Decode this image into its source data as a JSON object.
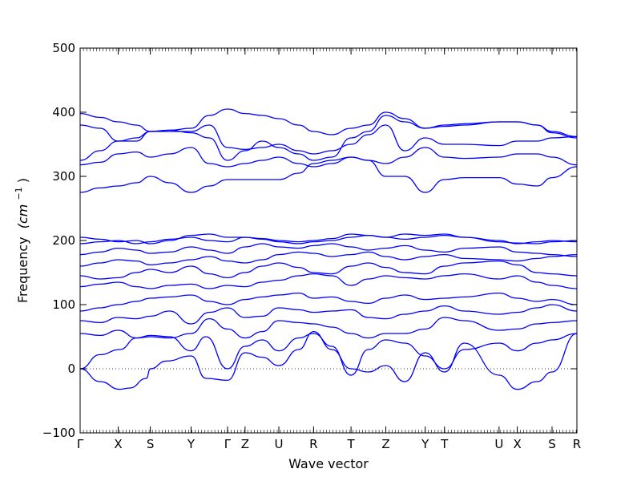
{
  "chart_data": {
    "type": "line",
    "xlabel": "Wave vector",
    "ylabel_text": "Frequency",
    "ylabel_unit": "(cm",
    "ylabel_exp": "−1",
    "ylabel_close": ")",
    "ylim": [
      -100,
      500
    ],
    "yticks": [
      -100,
      0,
      100,
      200,
      300,
      400,
      500
    ],
    "xlim": [
      0,
      14
    ],
    "xticks": [
      {
        "label": "Γ",
        "x": 0.0
      },
      {
        "label": "X",
        "x": 1.15
      },
      {
        "label": "S",
        "x": 2.12
      },
      {
        "label": "Y",
        "x": 3.35
      },
      {
        "label": "Γ",
        "x": 4.45
      },
      {
        "label": "Z",
        "x": 4.98
      },
      {
        "label": "U",
        "x": 6.0
      },
      {
        "label": "R",
        "x": 7.05
      },
      {
        "label": "T",
        "x": 8.18
      },
      {
        "label": "Z",
        "x": 9.23
      },
      {
        "label": "Y",
        "x": 10.42
      },
      {
        "label": "T",
        "x": 11.0
      },
      {
        "label": "U",
        "x": 12.65
      },
      {
        "label": "X",
        "x": 13.2
      },
      {
        "label": "S",
        "x": 14.25
      },
      {
        "label": "R",
        "x": 15.0
      }
    ],
    "zero_line": true,
    "series_color": "#0000ff",
    "series": [
      {
        "x": [
          0,
          0.6,
          1.2,
          1.5,
          2.0,
          2.12,
          2.6,
          3.35,
          3.8,
          4.45,
          4.98,
          5.5,
          6.0,
          6.6,
          7.05,
          7.6,
          8.18,
          8.7,
          9.23,
          9.8,
          10.42,
          11.0,
          11.6,
          12.65,
          13.2,
          13.8,
          14.25,
          15.0
        ],
        "y": [
          0,
          -20,
          -32,
          -30,
          -15,
          0,
          12,
          20,
          -15,
          -18,
          25,
          18,
          5,
          30,
          58,
          30,
          0,
          -5,
          5,
          -20,
          25,
          -5,
          40,
          -10,
          -32,
          -20,
          -5,
          55
        ]
      },
      {
        "x": [
          0,
          0.6,
          1.2,
          1.7,
          2.12,
          2.7,
          3.35,
          3.8,
          4.45,
          4.98,
          5.5,
          6.0,
          6.6,
          7.05,
          7.6,
          8.18,
          8.7,
          9.23,
          9.8,
          10.42,
          11.0,
          11.6,
          12.65,
          13.2,
          13.8,
          14.25,
          15.0
        ],
        "y": [
          0,
          22,
          30,
          48,
          52,
          50,
          28,
          50,
          0,
          35,
          45,
          28,
          48,
          55,
          35,
          -10,
          30,
          45,
          40,
          20,
          0,
          30,
          40,
          28,
          40,
          45,
          55
        ]
      },
      {
        "x": [
          0,
          0.6,
          1.15,
          1.7,
          2.12,
          2.7,
          3.35,
          3.9,
          4.45,
          4.98,
          5.5,
          6.0,
          6.6,
          7.05,
          7.6,
          8.18,
          8.7,
          9.23,
          9.8,
          10.42,
          11.0,
          11.6,
          12.65,
          13.2,
          13.8,
          14.25,
          15.0
        ],
        "y": [
          55,
          52,
          60,
          48,
          50,
          48,
          55,
          78,
          62,
          48,
          58,
          75,
          72,
          70,
          65,
          55,
          48,
          55,
          55,
          62,
          80,
          75,
          60,
          62,
          70,
          72,
          75
        ]
      },
      {
        "x": [
          0,
          0.6,
          1.15,
          1.7,
          2.12,
          2.7,
          3.35,
          3.9,
          4.45,
          4.98,
          5.5,
          6.0,
          6.6,
          7.05,
          7.6,
          8.18,
          8.7,
          9.23,
          9.8,
          10.42,
          11.0,
          11.6,
          12.65,
          13.2,
          13.8,
          14.25,
          15.0
        ],
        "y": [
          75,
          72,
          80,
          78,
          82,
          90,
          70,
          88,
          95,
          80,
          82,
          95,
          92,
          88,
          90,
          92,
          80,
          78,
          85,
          90,
          98,
          90,
          85,
          88,
          95,
          100,
          90
        ]
      },
      {
        "x": [
          0,
          0.6,
          1.15,
          1.7,
          2.12,
          2.7,
          3.35,
          3.9,
          4.45,
          4.98,
          5.5,
          6.0,
          6.6,
          7.05,
          7.6,
          8.18,
          8.7,
          9.23,
          9.8,
          10.42,
          11.0,
          11.6,
          12.65,
          13.2,
          13.8,
          14.25,
          15.0
        ],
        "y": [
          90,
          95,
          100,
          105,
          110,
          112,
          115,
          105,
          100,
          108,
          112,
          115,
          118,
          110,
          112,
          105,
          102,
          110,
          115,
          108,
          110,
          112,
          118,
          110,
          105,
          108,
          100
        ]
      },
      {
        "x": [
          0,
          0.6,
          1.15,
          1.7,
          2.12,
          2.7,
          3.35,
          3.9,
          4.45,
          4.98,
          5.5,
          6.0,
          6.6,
          7.05,
          7.6,
          8.18,
          8.7,
          9.23,
          9.8,
          10.42,
          11.0,
          11.6,
          12.65,
          13.2,
          13.8,
          14.25,
          15.0
        ],
        "y": [
          128,
          132,
          135,
          128,
          125,
          130,
          132,
          125,
          130,
          128,
          135,
          138,
          145,
          148,
          145,
          130,
          140,
          145,
          142,
          140,
          145,
          148,
          140,
          145,
          135,
          130,
          125
        ]
      },
      {
        "x": [
          0,
          0.6,
          1.15,
          1.7,
          2.12,
          2.7,
          3.35,
          3.9,
          4.45,
          4.98,
          5.5,
          6.0,
          6.6,
          7.05,
          7.6,
          8.18,
          8.7,
          9.23,
          9.8,
          10.42,
          11.0,
          11.6,
          12.65,
          13.2,
          13.8,
          14.25,
          15.0
        ],
        "y": [
          145,
          140,
          142,
          150,
          155,
          150,
          160,
          148,
          142,
          150,
          160,
          165,
          158,
          150,
          148,
          160,
          165,
          158,
          150,
          148,
          160,
          165,
          168,
          162,
          150,
          148,
          145
        ]
      },
      {
        "x": [
          0,
          0.6,
          1.15,
          1.7,
          2.12,
          2.7,
          3.35,
          3.9,
          4.45,
          4.98,
          5.5,
          6.0,
          6.6,
          7.05,
          7.6,
          8.18,
          8.7,
          9.23,
          9.8,
          10.42,
          11.0,
          11.6,
          12.65,
          13.2,
          13.8,
          14.25,
          15.0
        ],
        "y": [
          160,
          165,
          170,
          168,
          162,
          165,
          170,
          175,
          168,
          165,
          170,
          178,
          182,
          180,
          175,
          178,
          182,
          175,
          170,
          175,
          178,
          172,
          170,
          168,
          172,
          175,
          178
        ]
      },
      {
        "x": [
          0,
          0.6,
          1.15,
          1.7,
          2.12,
          2.7,
          3.35,
          3.9,
          4.45,
          4.98,
          5.5,
          6.0,
          6.6,
          7.05,
          7.6,
          8.18,
          8.7,
          9.23,
          9.8,
          10.42,
          11.0,
          11.6,
          12.65,
          13.2,
          13.8,
          14.25,
          15.0
        ],
        "y": [
          178,
          182,
          188,
          185,
          180,
          182,
          190,
          185,
          180,
          190,
          195,
          190,
          188,
          192,
          195,
          190,
          185,
          188,
          192,
          185,
          182,
          188,
          190,
          182,
          180,
          178,
          175
        ]
      },
      {
        "x": [
          0,
          0.6,
          1.15,
          1.7,
          2.12,
          2.7,
          3.35,
          3.9,
          4.45,
          4.98,
          5.5,
          6.0,
          6.6,
          7.05,
          7.6,
          8.18,
          8.7,
          9.23,
          9.8,
          10.42,
          11.0,
          11.6,
          12.65,
          13.2,
          13.8,
          14.25,
          15.0
        ],
        "y": [
          195,
          198,
          200,
          195,
          198,
          202,
          205,
          200,
          198,
          205,
          202,
          198,
          195,
          198,
          200,
          205,
          208,
          205,
          202,
          205,
          208,
          205,
          200,
          195,
          198,
          200,
          198
        ]
      },
      {
        "x": [
          0,
          0.6,
          1.15,
          1.7,
          2.12,
          2.7,
          3.35,
          3.9,
          4.45,
          4.98,
          5.5,
          6.0,
          6.6,
          7.05,
          7.6,
          8.18,
          8.7,
          9.23,
          9.8,
          10.42,
          11.0,
          11.6,
          12.65,
          13.2,
          13.8,
          14.25,
          15.0
        ],
        "y": [
          205,
          202,
          198,
          200,
          195,
          200,
          208,
          210,
          205,
          205,
          203,
          200,
          198,
          200,
          203,
          210,
          208,
          205,
          210,
          208,
          210,
          205,
          198,
          196,
          195,
          198,
          200
        ]
      },
      {
        "x": [
          0,
          0.6,
          1.15,
          1.7,
          2.12,
          2.7,
          3.35,
          3.9,
          4.45,
          4.98,
          5.5,
          6.0,
          6.6,
          7.05,
          7.6,
          8.18,
          8.7,
          9.23,
          9.8,
          10.42,
          11.0,
          11.6,
          12.65,
          13.2,
          13.8,
          14.25,
          15.0
        ],
        "y": [
          275,
          282,
          285,
          290,
          300,
          290,
          275,
          285,
          295,
          295,
          295,
          295,
          305,
          320,
          325,
          330,
          325,
          300,
          300,
          275,
          295,
          298,
          298,
          288,
          285,
          298,
          315
        ]
      },
      {
        "x": [
          0,
          0.6,
          1.15,
          1.7,
          2.12,
          2.7,
          3.35,
          3.9,
          4.45,
          4.98,
          5.5,
          6.0,
          6.6,
          7.05,
          7.6,
          8.18,
          8.7,
          9.23,
          9.8,
          10.42,
          11.0,
          11.6,
          12.65,
          13.2,
          13.8,
          14.25,
          15.0
        ],
        "y": [
          318,
          322,
          335,
          338,
          330,
          335,
          345,
          320,
          315,
          320,
          325,
          330,
          320,
          315,
          320,
          330,
          325,
          320,
          330,
          345,
          330,
          328,
          330,
          335,
          335,
          330,
          318
        ]
      },
      {
        "x": [
          0,
          0.6,
          1.15,
          1.7,
          2.12,
          2.7,
          3.35,
          3.9,
          4.45,
          4.98,
          5.5,
          6.0,
          6.6,
          7.05,
          7.6,
          8.18,
          8.7,
          9.23,
          9.8,
          10.42,
          11.0,
          11.6,
          12.65,
          13.2,
          13.8,
          14.25,
          15.0
        ],
        "y": [
          325,
          340,
          355,
          355,
          370,
          370,
          370,
          380,
          345,
          342,
          345,
          350,
          340,
          335,
          340,
          350,
          365,
          380,
          340,
          360,
          350,
          350,
          348,
          355,
          355,
          360,
          362
        ]
      },
      {
        "x": [
          0,
          0.6,
          1.15,
          1.7,
          2.12,
          2.7,
          3.35,
          3.9,
          4.45,
          4.98,
          5.5,
          6.0,
          6.6,
          7.05,
          7.6,
          8.18,
          8.7,
          9.23,
          9.8,
          10.42,
          11.0,
          11.6,
          12.65,
          13.2,
          13.8,
          14.25,
          15.0
        ],
        "y": [
          380,
          375,
          355,
          360,
          370,
          372,
          375,
          395,
          405,
          398,
          395,
          390,
          380,
          370,
          365,
          375,
          380,
          400,
          390,
          375,
          378,
          380,
          385,
          385,
          380,
          370,
          362
        ]
      },
      {
        "x": [
          0,
          0.6,
          1.15,
          1.7,
          2.12,
          2.7,
          3.35,
          3.9,
          4.45,
          4.98,
          5.5,
          6.0,
          6.6,
          7.05,
          7.6,
          8.18,
          8.7,
          9.23,
          9.8,
          10.42,
          11.0,
          11.6,
          12.65,
          13.2,
          13.8,
          14.25,
          15.0
        ],
        "y": [
          398,
          392,
          385,
          380,
          370,
          372,
          368,
          360,
          325,
          340,
          355,
          345,
          335,
          325,
          330,
          360,
          370,
          395,
          385,
          375,
          380,
          382,
          385,
          385,
          380,
          368,
          360
        ]
      }
    ]
  }
}
